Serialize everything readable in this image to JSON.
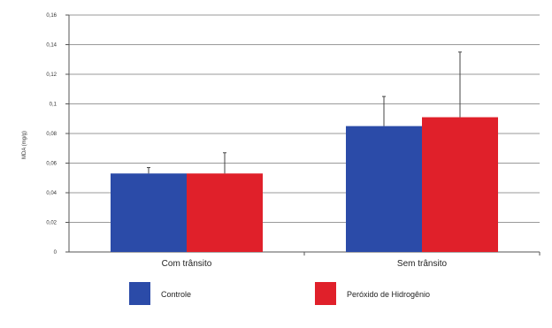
{
  "chart_data": {
    "type": "bar",
    "ylabel": "MDA (mg/g)",
    "ylim": [
      0,
      0.16
    ],
    "yticks": [
      "0",
      "0,02",
      "0,04",
      "0,06",
      "0,08",
      "0,1",
      "0,12",
      "0,14",
      "0,16"
    ],
    "grid": true,
    "legend_position": "bottom",
    "categories": [
      "Com trânsito",
      "Sem trânsito"
    ],
    "series": [
      {
        "name": "Controle",
        "color": "#2b4ba8",
        "values": [
          0.053,
          0.085
        ],
        "errors": [
          0.004,
          0.02
        ]
      },
      {
        "name": "Peróxido de Hidrogênio",
        "color": "#e0202a",
        "values": [
          0.053,
          0.091
        ],
        "errors": [
          0.014,
          0.044
        ]
      }
    ]
  }
}
